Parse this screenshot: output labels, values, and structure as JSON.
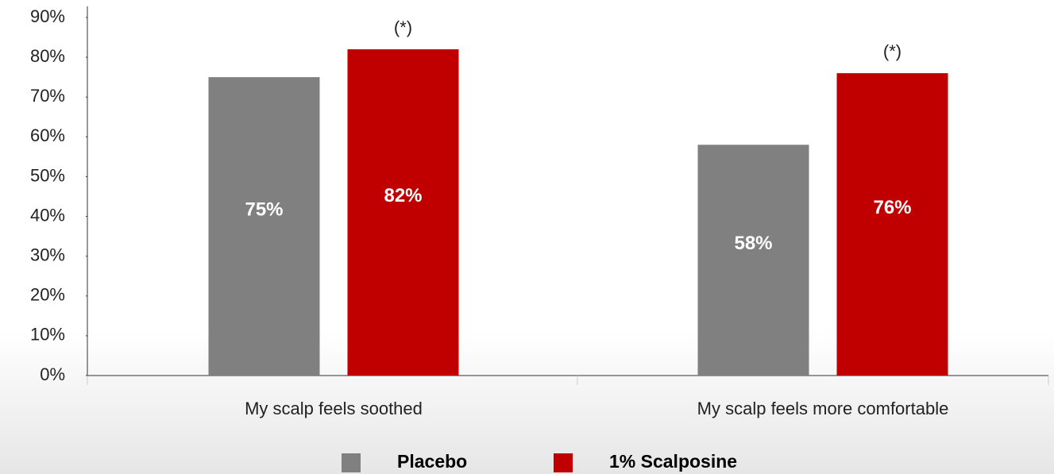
{
  "chart_data": {
    "type": "bar",
    "categories": [
      "My scalp feels soothed",
      "My scalp feels more comfortable"
    ],
    "series": [
      {
        "name": "Placebo",
        "color": "#808080",
        "values": [
          75,
          58
        ],
        "value_labels": [
          "75%",
          "58%"
        ]
      },
      {
        "name": "1% Scalposine",
        "color": "#c00000",
        "values": [
          82,
          76
        ],
        "value_labels": [
          "82%",
          "76%"
        ],
        "annotations": [
          "(*)",
          "(*)"
        ]
      }
    ],
    "ylim": [
      0,
      90
    ],
    "yticks": [
      {
        "value": 0,
        "label": "0%"
      },
      {
        "value": 10,
        "label": "10%"
      },
      {
        "value": 20,
        "label": "20%"
      },
      {
        "value": 30,
        "label": "30%"
      },
      {
        "value": 40,
        "label": "40%"
      },
      {
        "value": 50,
        "label": "50%"
      },
      {
        "value": 60,
        "label": "60%"
      },
      {
        "value": 70,
        "label": "70%"
      },
      {
        "value": 80,
        "label": "80%"
      },
      {
        "value": 90,
        "label": "90%"
      }
    ],
    "grid": false,
    "legend": "bottom"
  }
}
